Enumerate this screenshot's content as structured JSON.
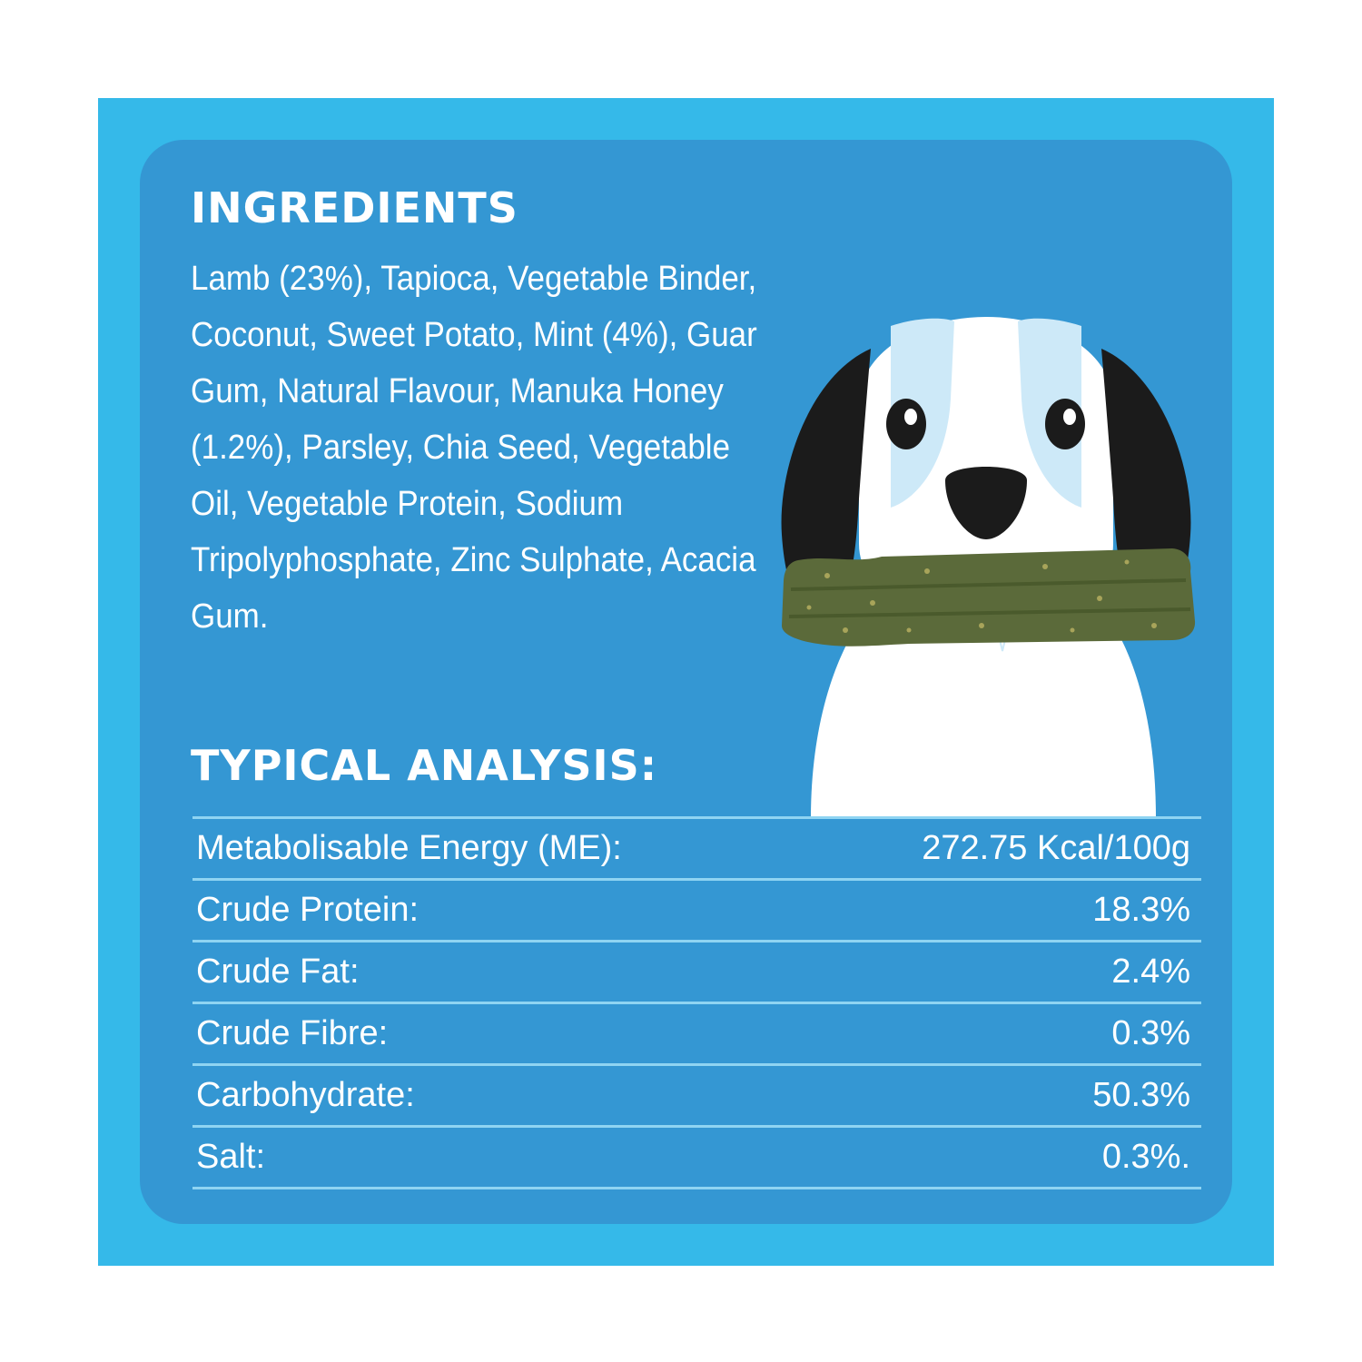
{
  "ingredients": {
    "heading": "INGREDIENTS",
    "text": "Lamb (23%), Tapioca, Vegetable Binder, Coconut, Sweet Potato, Mint (4%), Guar Gum, Natural Flavour, Manuka Honey (1.2%), Parsley, Chia Seed, Vegetable Oil, Vegetable Protein, Sodium Tripolyphosphate, Zinc Sulphate, Acacia Gum."
  },
  "analysis": {
    "heading": "TYPICAL ANALYSIS:",
    "rows": [
      {
        "label": "Metabolisable Energy (ME):",
        "value": "272.75 Kcal/100g"
      },
      {
        "label": "Crude Protein:",
        "value": "18.3%"
      },
      {
        "label": "Crude Fat:",
        "value": "2.4%"
      },
      {
        "label": "Crude Fibre:",
        "value": "0.3%"
      },
      {
        "label": "Carbohydrate:",
        "value": "50.3%"
      },
      {
        "label": "Salt:",
        "value": "0.3%."
      }
    ]
  },
  "illustration": {
    "icon": "dog-with-dental-stick-icon"
  },
  "colors": {
    "outer_background": "#35b9e9",
    "panel_background": "#3497d3",
    "text": "#ffffff",
    "divider": "#8fd4f2"
  }
}
